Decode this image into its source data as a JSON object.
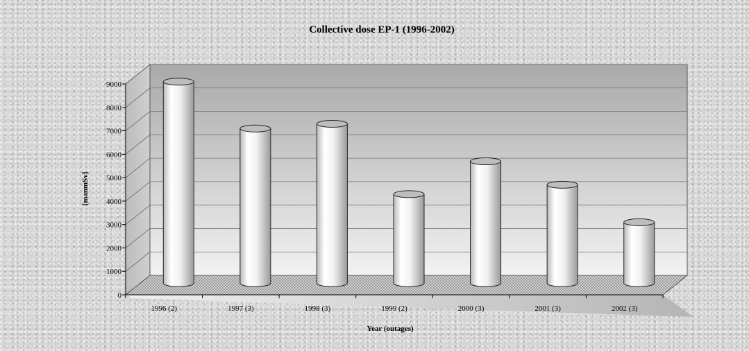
{
  "chart_data": {
    "type": "bar",
    "title": "Collective dose EP-1 (1996-2002)",
    "xlabel": "Year (outages)",
    "ylabel": "[manmSv]",
    "categories": [
      "1996 (2)",
      "1997 (3)",
      "1998 (3)",
      "1999 (2)",
      "2000 (3)",
      "2001 (3)",
      "2002 (3)"
    ],
    "values": [
      8600,
      6600,
      6800,
      3800,
      5200,
      4200,
      2600
    ],
    "ylim": [
      0,
      9000
    ],
    "yticks": [
      0,
      1000,
      2000,
      3000,
      4000,
      5000,
      6000,
      7000,
      8000,
      9000
    ],
    "grid": true,
    "legend": "none",
    "style": "3d-cylinder"
  }
}
